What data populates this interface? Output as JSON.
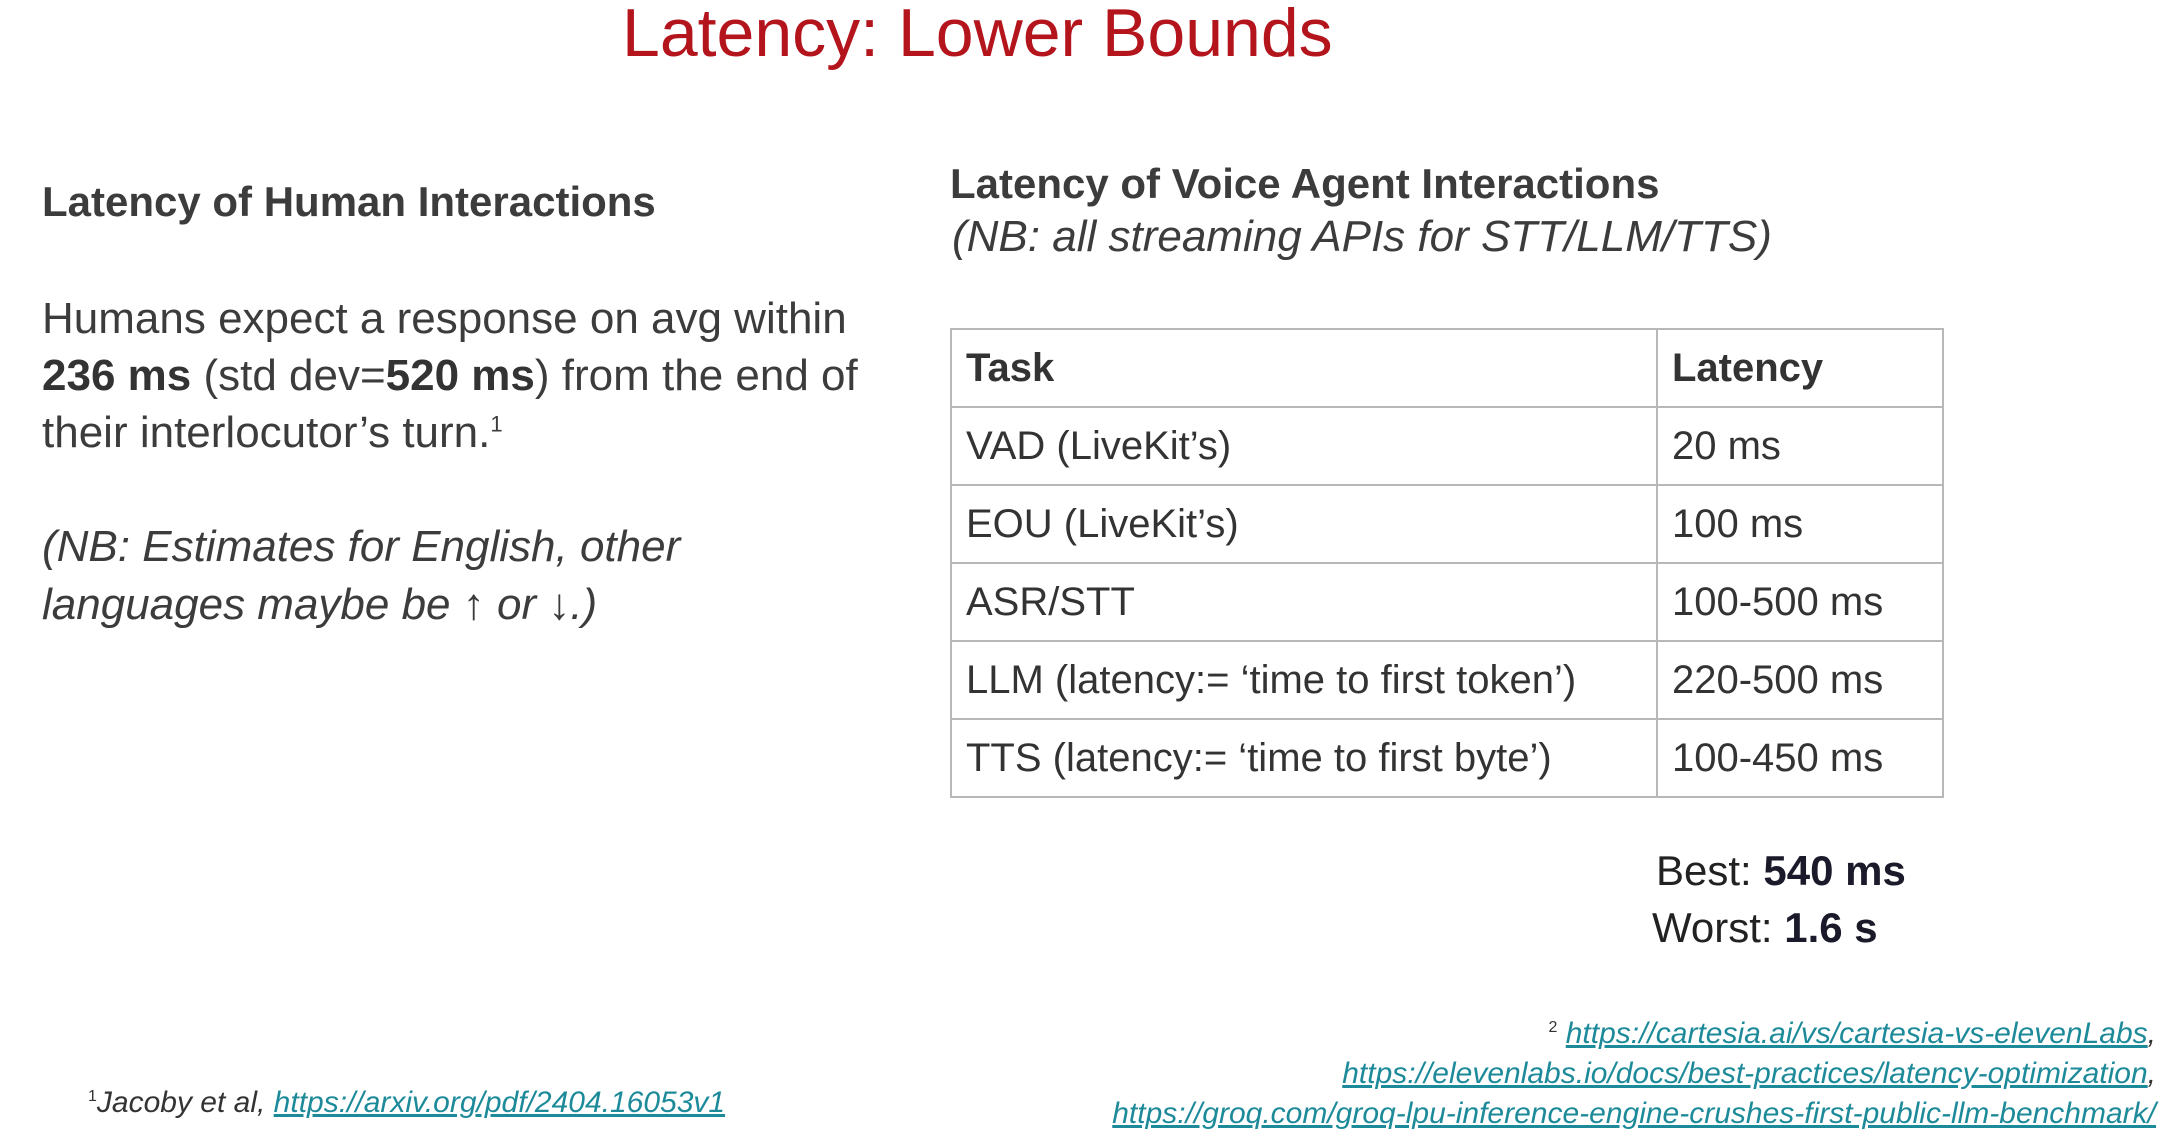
{
  "slide": {
    "title": "Latency: Lower Bounds"
  },
  "left": {
    "heading": "Latency of Human Interactions",
    "body": {
      "part1": "Humans expect a response on avg within ",
      "mean": "236 ms",
      "part2": " (std dev=",
      "std": "520 ms",
      "part3": ") from the end of their  interlocutor’s turn.",
      "footnote_ref": "1"
    },
    "nb": "(NB: Estimates for English, other languages maybe be ↑ or ↓.)"
  },
  "right": {
    "heading": "Latency of Voice Agent Interactions",
    "nb": "(NB: all streaming APIs for STT/LLM/TTS)",
    "table": {
      "headers": [
        "Task",
        "Latency"
      ],
      "rows": [
        [
          "VAD (LiveKit’s)",
          "20 ms"
        ],
        [
          "EOU (LiveKit’s)",
          "100 ms"
        ],
        [
          "ASR/STT",
          "100-500 ms"
        ],
        [
          "LLM (latency:= ‘time to first token’)",
          "220-500 ms"
        ],
        [
          "TTS (latency:= ‘time to first byte’)",
          "100-450 ms"
        ]
      ]
    },
    "summary": {
      "best_label": "Best: ",
      "best_value": "540 ms",
      "worst_label": "Worst: ",
      "worst_value": "1.6 s"
    }
  },
  "footnotes": {
    "one": {
      "marker": "1",
      "text": "Jacoby et al, ",
      "link": "https://arxiv.org/pdf/2404.16053v1"
    },
    "two": {
      "marker": "2",
      "link1": "https://cartesia.ai/vs/cartesia-vs-elevenLabs",
      "link2": "https://elevenlabs.io/docs/best-practices/latency-optimization",
      "link3": "https://groq.com/groq-lpu-inference-engine-crushes-first-public-llm-benchmark/",
      "separator": ","
    }
  },
  "colors": {
    "title": "#b4141c",
    "link": "#1d8a9a",
    "text": "#3c3c3c",
    "table_border": "#b8b8b8"
  }
}
